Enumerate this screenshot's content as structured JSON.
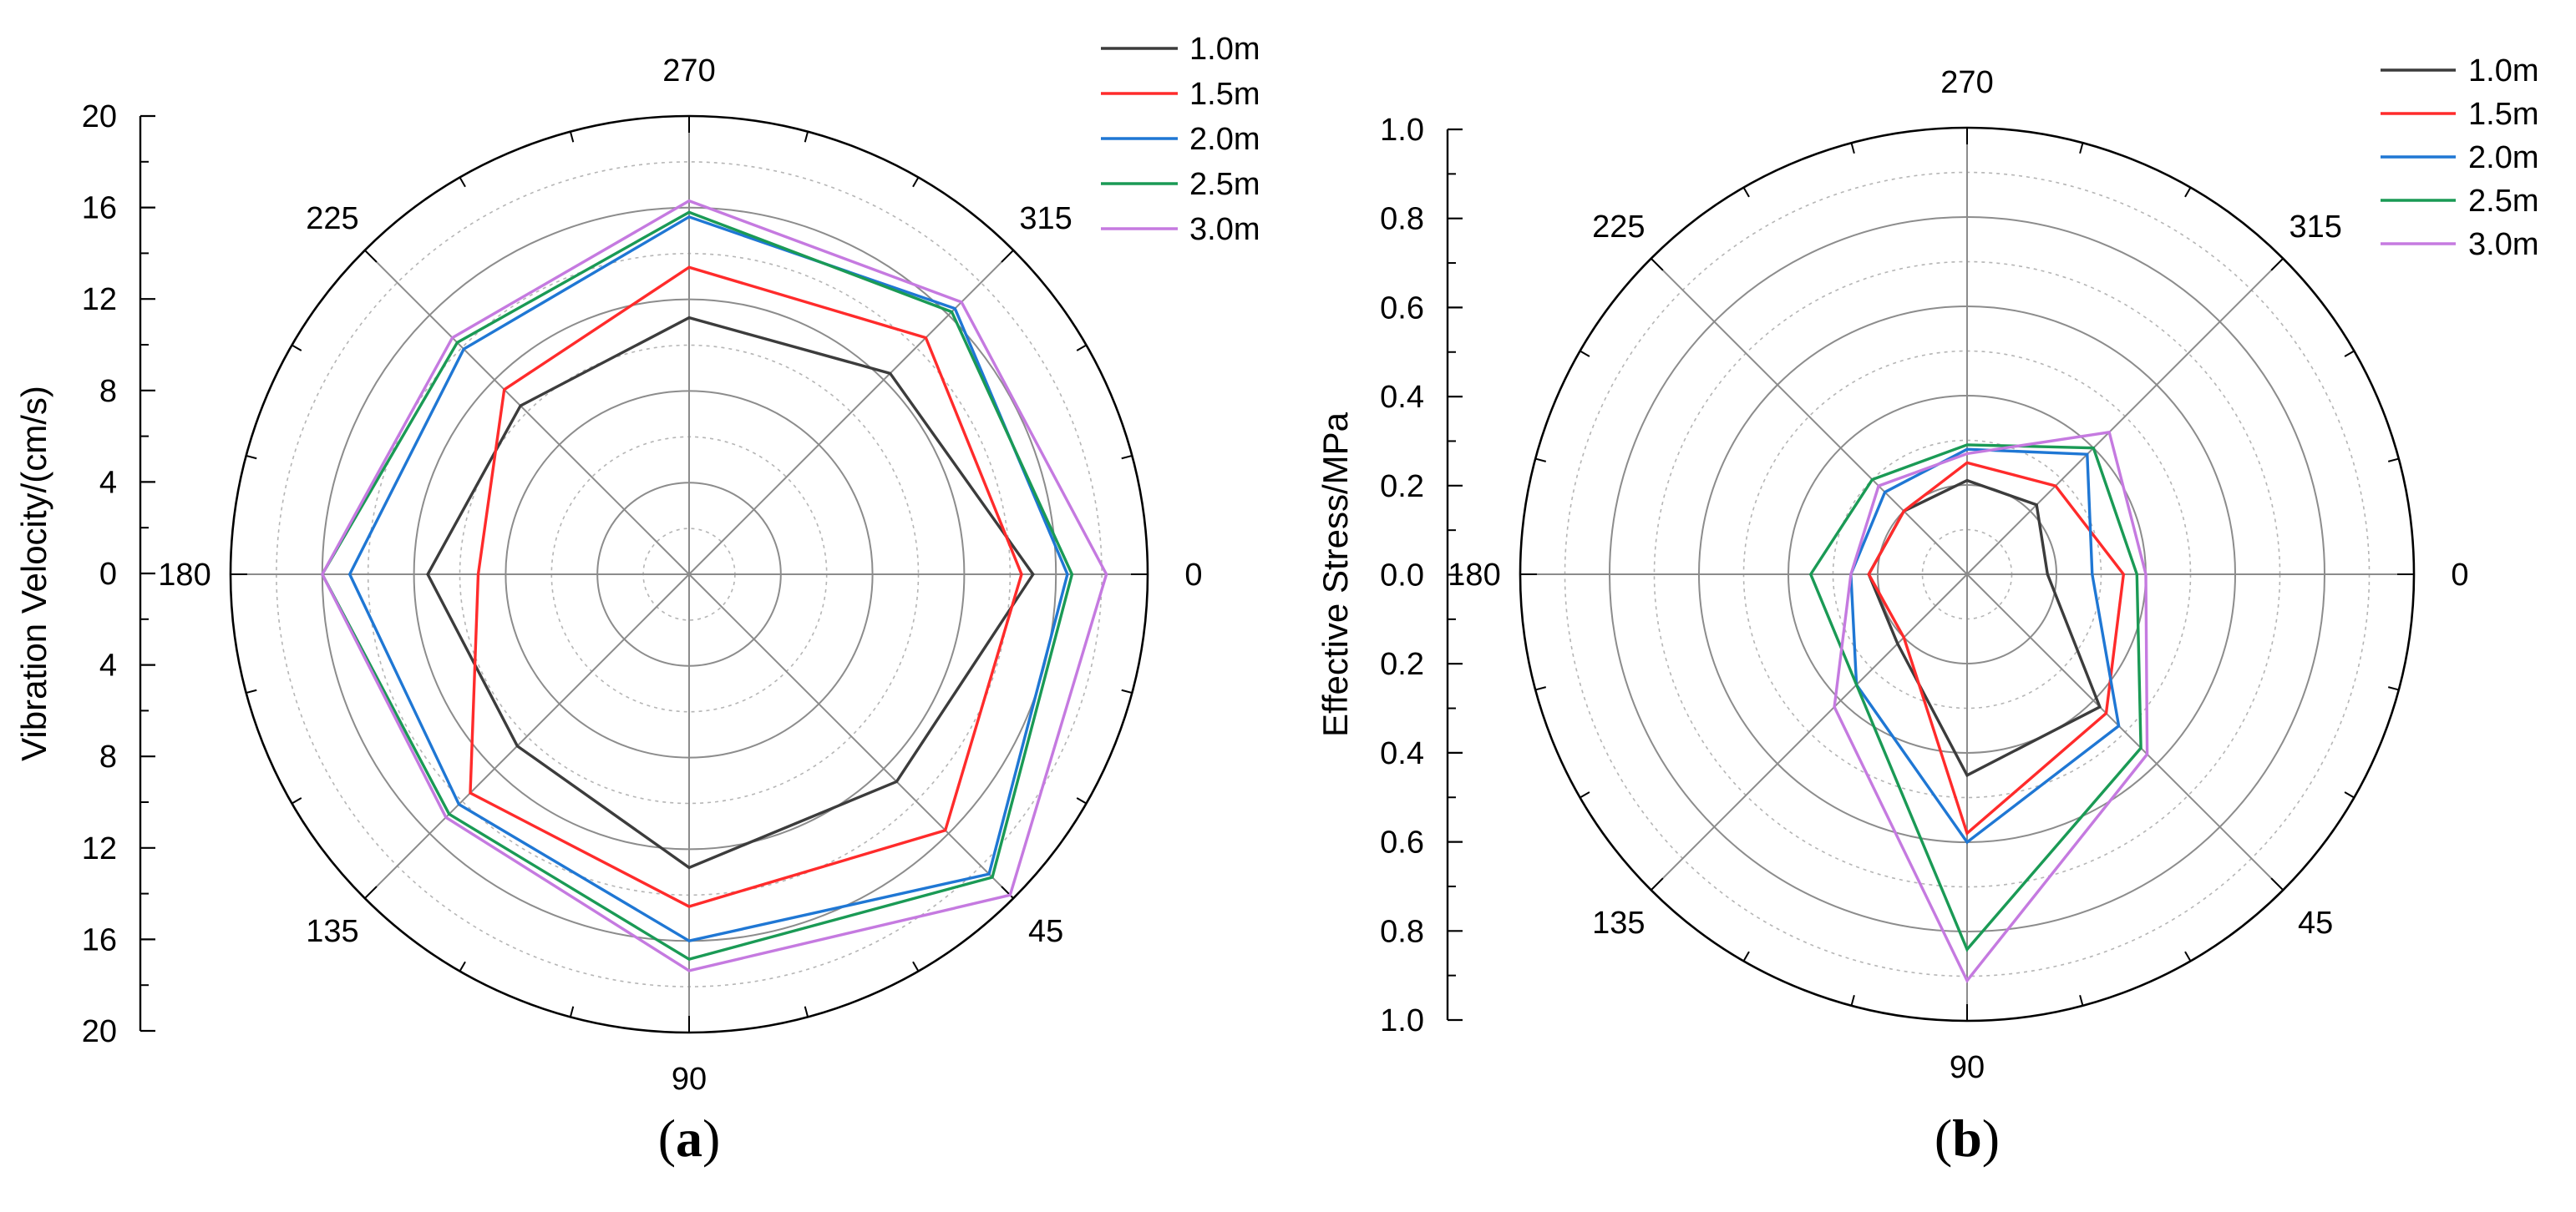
{
  "chart_data": [
    {
      "type": "polar-line",
      "panel_label": "(a)",
      "ylabel": "Vibration Velocity/(cm/s)",
      "rlim": [
        0,
        20
      ],
      "radial_ticks": [
        "20",
        "16",
        "12",
        "8",
        "4",
        "0",
        "4",
        "8",
        "12",
        "16",
        "20"
      ],
      "angles": [
        0,
        45,
        90,
        135,
        180,
        225,
        270,
        315
      ],
      "angle_labels": [
        "0",
        "45",
        "90",
        "135",
        "180",
        "225",
        "270",
        "315"
      ],
      "legend_position": "top-right",
      "series": [
        {
          "name": "1.0m",
          "color": "#3c3c3c",
          "values": [
            15.0,
            12.8,
            12.8,
            10.6,
            11.4,
            10.4,
            11.2,
            12.4
          ]
        },
        {
          "name": "1.5m",
          "color": "#ff2b2b",
          "values": [
            14.5,
            15.8,
            14.5,
            13.5,
            9.2,
            11.4,
            13.4,
            14.6
          ]
        },
        {
          "name": "2.0m",
          "color": "#1f77d4",
          "values": [
            16.5,
            18.5,
            16.0,
            14.2,
            14.8,
            13.9,
            15.6,
            16.4
          ]
        },
        {
          "name": "2.5m",
          "color": "#1a9a55",
          "values": [
            16.7,
            18.7,
            16.8,
            14.8,
            16.0,
            14.3,
            15.8,
            16.2
          ]
        },
        {
          "name": "3.0m",
          "color": "#c57ae0",
          "values": [
            18.2,
            19.8,
            17.3,
            15.0,
            16.0,
            14.6,
            16.3,
            16.8
          ]
        }
      ]
    },
    {
      "type": "polar-line",
      "panel_label": "(b)",
      "ylabel": "Effective Stress/MPa",
      "rlim": [
        0,
        1.0
      ],
      "radial_ticks": [
        "1.0",
        "0.8",
        "0.6",
        "0.4",
        "0.2",
        "0.0",
        "0.2",
        "0.4",
        "0.6",
        "0.8",
        "1.0"
      ],
      "angles": [
        0,
        45,
        90,
        135,
        180,
        225,
        270,
        315
      ],
      "angle_labels": [
        "0",
        "45",
        "90",
        "135",
        "180",
        "225",
        "270",
        "315"
      ],
      "legend_position": "top-right",
      "series": [
        {
          "name": "1.0m",
          "color": "#3c3c3c",
          "values": [
            0.18,
            0.42,
            0.45,
            0.22,
            0.22,
            0.2,
            0.21,
            0.22
          ]
        },
        {
          "name": "1.5m",
          "color": "#ff2b2b",
          "values": [
            0.35,
            0.44,
            0.58,
            0.2,
            0.22,
            0.2,
            0.25,
            0.28
          ]
        },
        {
          "name": "2.0m",
          "color": "#1f77d4",
          "values": [
            0.28,
            0.48,
            0.6,
            0.35,
            0.26,
            0.26,
            0.28,
            0.38
          ]
        },
        {
          "name": "2.5m",
          "color": "#1a9a55",
          "values": [
            0.38,
            0.55,
            0.84,
            0.35,
            0.35,
            0.3,
            0.29,
            0.4
          ]
        },
        {
          "name": "3.0m",
          "color": "#c57ae0",
          "values": [
            0.4,
            0.57,
            0.91,
            0.42,
            0.26,
            0.28,
            0.27,
            0.45
          ]
        }
      ]
    }
  ]
}
